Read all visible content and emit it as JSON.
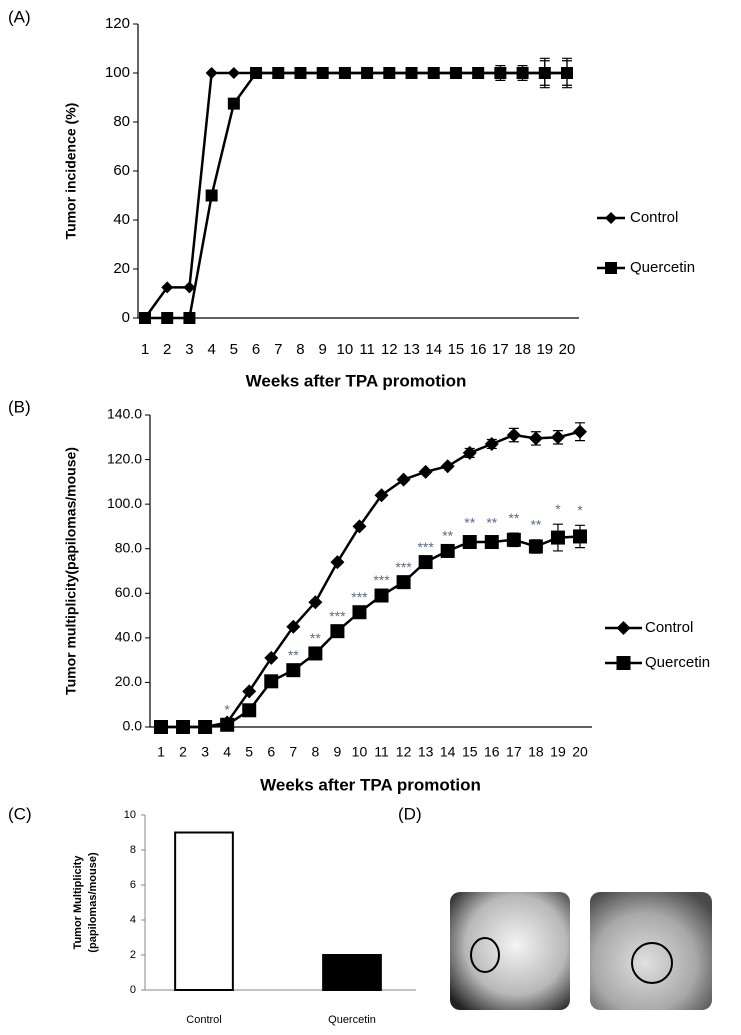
{
  "chart_data": [
    {
      "type": "line",
      "label": "(A)",
      "ylabel": "Tumor incidence (%)",
      "xlabel": "Weeks after TPA promotion",
      "categories": [
        "1",
        "2",
        "3",
        "4",
        "5",
        "6",
        "7",
        "8",
        "9",
        "10",
        "11",
        "12",
        "13",
        "14",
        "15",
        "16",
        "17",
        "18",
        "19",
        "20"
      ],
      "ylim": [
        0,
        120
      ],
      "yticks": [
        0,
        20,
        40,
        60,
        80,
        100,
        120
      ],
      "grid": false,
      "legend": "right",
      "series": [
        {
          "name": "Control",
          "color": "#000000",
          "marker": "diamond",
          "values": [
            0,
            12.5,
            12.5,
            100,
            100,
            100,
            100,
            100,
            100,
            100,
            100,
            100,
            100,
            100,
            100,
            100,
            100,
            100,
            100,
            100
          ],
          "errors": [
            null,
            null,
            null,
            null,
            null,
            null,
            null,
            null,
            null,
            null,
            null,
            null,
            null,
            null,
            null,
            null,
            3,
            3,
            6,
            6
          ]
        },
        {
          "name": "Quercetin",
          "color": "#000000",
          "marker": "square",
          "values": [
            0,
            0,
            0,
            50,
            87.5,
            100,
            100,
            100,
            100,
            100,
            100,
            100,
            100,
            100,
            100,
            100,
            100,
            100,
            100,
            100
          ],
          "errors": [
            null,
            null,
            null,
            null,
            null,
            null,
            null,
            null,
            null,
            null,
            null,
            null,
            null,
            null,
            null,
            null,
            null,
            null,
            5,
            5
          ]
        }
      ]
    },
    {
      "type": "line",
      "label": "(B)",
      "ylabel": "Tumor multiplicity(papilomas/mouse)",
      "xlabel": "Weeks after TPA promotion",
      "categories": [
        "1",
        "2",
        "3",
        "4",
        "5",
        "6",
        "7",
        "8",
        "9",
        "10",
        "11",
        "12",
        "13",
        "14",
        "15",
        "16",
        "17",
        "18",
        "19",
        "20"
      ],
      "ylim": [
        0,
        140
      ],
      "yticks": [
        {
          "value": 0,
          "label": "0.0"
        },
        {
          "value": 20,
          "label": "20.0"
        },
        {
          "value": 40,
          "label": "40.0"
        },
        {
          "value": 60,
          "label": "60.0"
        },
        {
          "value": 80,
          "label": "80.0"
        },
        {
          "value": 100,
          "label": "100.0"
        },
        {
          "value": 120,
          "label": "120.0"
        },
        {
          "value": 140,
          "label": "140.0"
        }
      ],
      "grid": false,
      "legend": "right",
      "series": [
        {
          "name": "Control",
          "color": "#000000",
          "marker": "diamond",
          "values": [
            0,
            0,
            0,
            2,
            16,
            31,
            45,
            56,
            74,
            90,
            104,
            111,
            114.5,
            117,
            123,
            127,
            131,
            129.5,
            130,
            132.5
          ],
          "errors": [
            null,
            null,
            null,
            null,
            null,
            null,
            null,
            null,
            null,
            null,
            null,
            null,
            null,
            null,
            2,
            2,
            3,
            3,
            3,
            4
          ]
        },
        {
          "name": "Quercetin",
          "color": "#000000",
          "marker": "square",
          "values": [
            0,
            0,
            0,
            1,
            7.5,
            20.5,
            25.5,
            33,
            43,
            51.5,
            59,
            65,
            74,
            79,
            83,
            83,
            84,
            81,
            85,
            85.5
          ],
          "errors": [
            null,
            null,
            null,
            null,
            null,
            null,
            null,
            null,
            null,
            null,
            null,
            null,
            null,
            null,
            2,
            2,
            3,
            3,
            6,
            5
          ],
          "annotations": [
            null,
            null,
            null,
            "*",
            null,
            null,
            "**",
            "**",
            "***",
            "***",
            "***",
            "***",
            "***",
            "**",
            "**",
            "**",
            "**",
            "**",
            "*",
            "*"
          ]
        }
      ]
    },
    {
      "type": "bar",
      "label": "(C)",
      "ylabel": [
        "Tumor  Multiplicity",
        "(papilomas/mouse)"
      ],
      "categories": [
        "Control",
        "Quercetin"
      ],
      "values": [
        9,
        2
      ],
      "colors": [
        "#ffffff",
        "#000000"
      ],
      "ylim": [
        0,
        10
      ],
      "yticks": [
        0,
        2,
        4,
        6,
        8,
        10
      ],
      "grid": false
    }
  ],
  "panel_d": {
    "label": "(D)"
  }
}
